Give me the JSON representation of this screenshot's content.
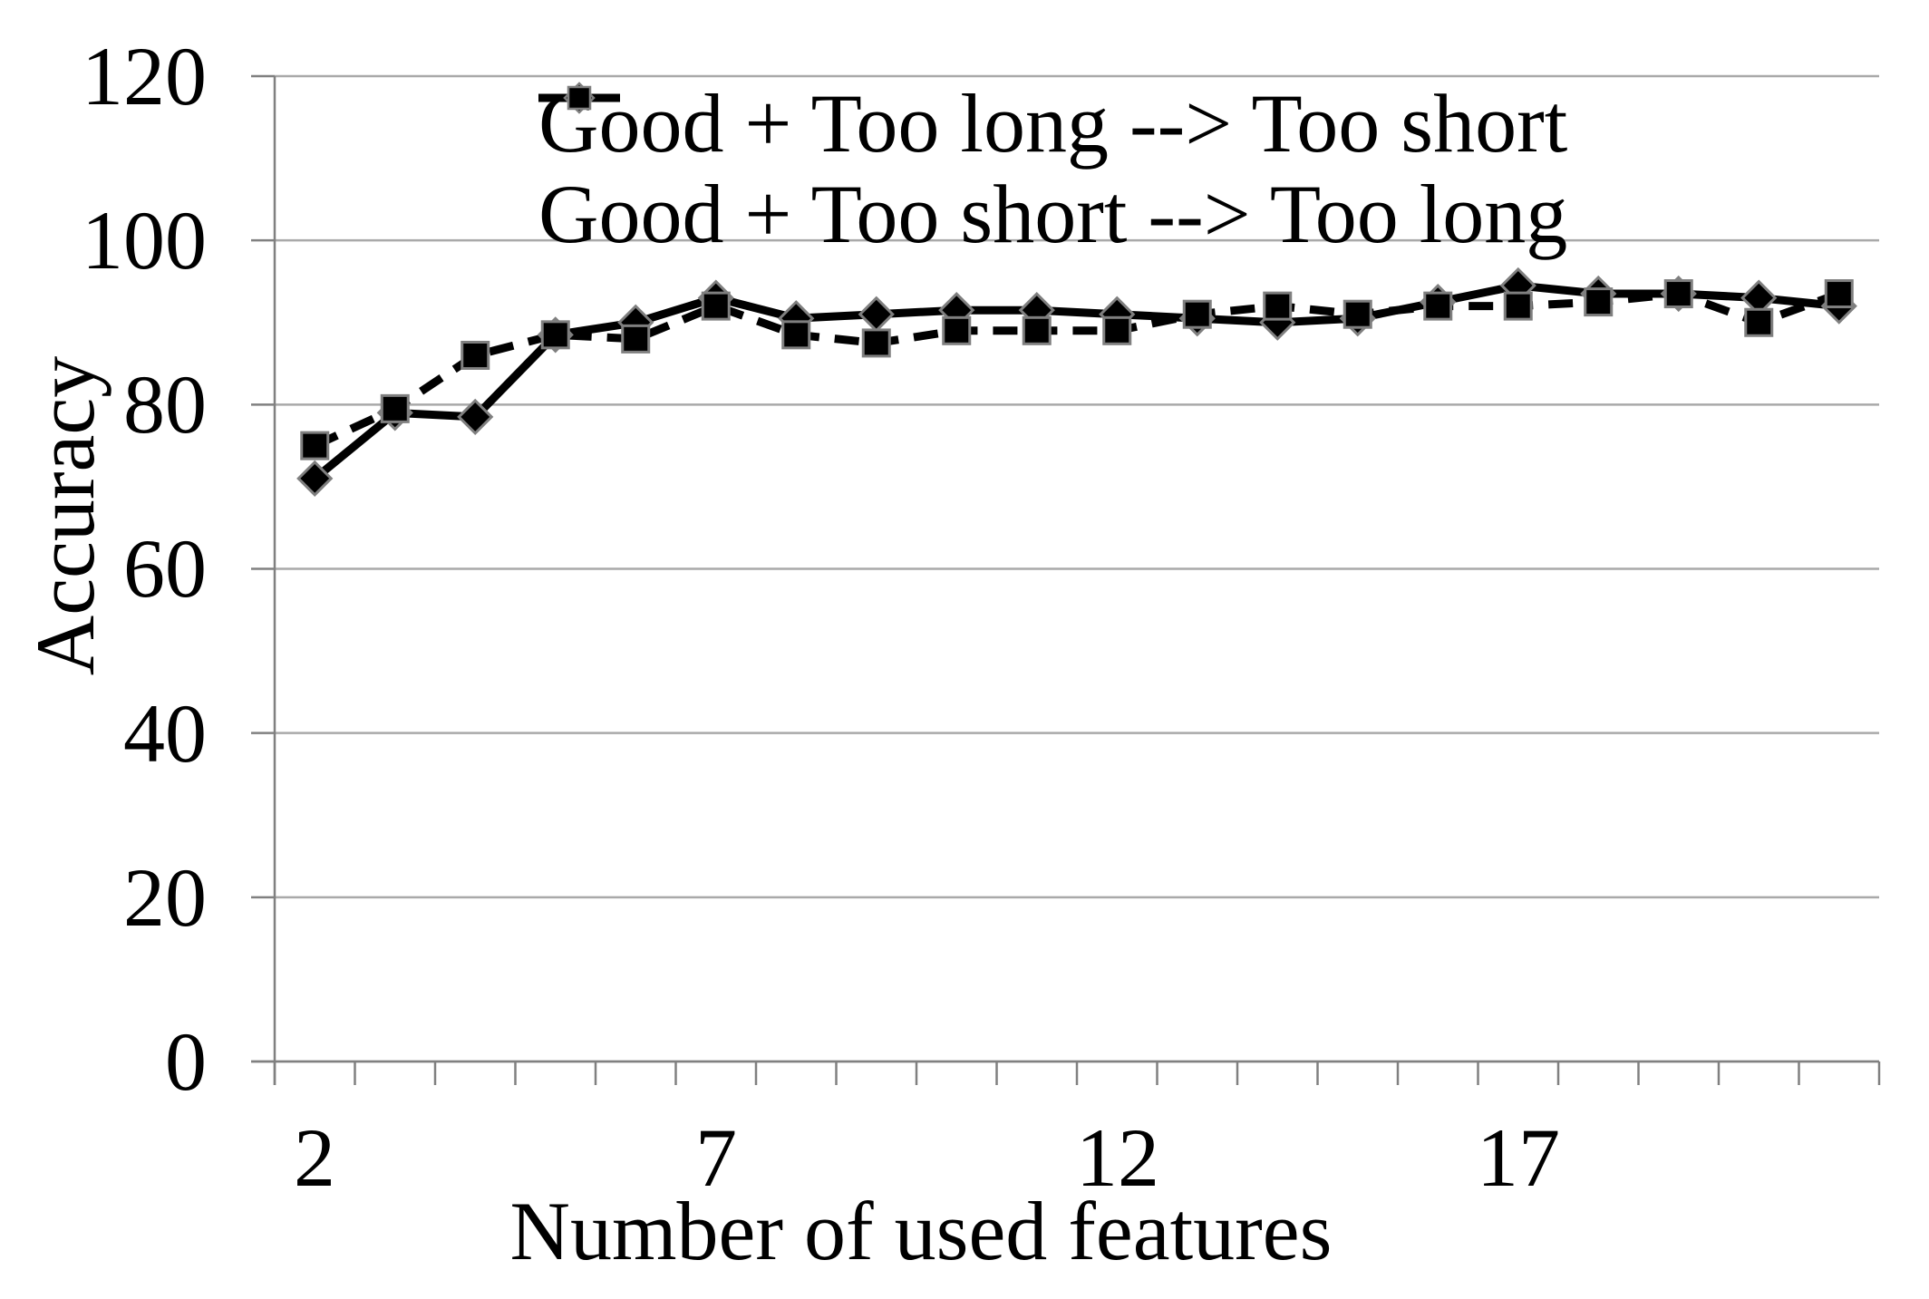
{
  "chart_data": {
    "type": "line",
    "title": "",
    "xlabel": "Number of used features",
    "ylabel": "Accuracy",
    "x_values": [
      2,
      3,
      4,
      5,
      6,
      7,
      8,
      9,
      10,
      11,
      12,
      13,
      14,
      15,
      16,
      17,
      18,
      19,
      20,
      21
    ],
    "x_tick_labels": [
      "2",
      "7",
      "12",
      "17"
    ],
    "x_tick_values": [
      2,
      7,
      12,
      17
    ],
    "y_ticks": [
      0,
      20,
      40,
      60,
      80,
      100,
      120
    ],
    "y_tick_labels": [
      "120",
      "100",
      "80",
      "60",
      "40",
      "20",
      "0"
    ],
    "ylim": [
      0,
      120
    ],
    "grid": "horizontal",
    "legend_position": "top-center-inside",
    "series": [
      {
        "name": "Good + Too long --> Too short",
        "marker": "diamond",
        "line": "solid",
        "values": [
          71,
          79,
          78.5,
          88.5,
          90,
          93,
          90.5,
          91,
          91.5,
          91.5,
          91,
          90.5,
          90,
          90.5,
          92.5,
          94.5,
          93.5,
          93.5,
          93,
          92
        ]
      },
      {
        "name": "Good + Too short --> Too long",
        "marker": "square",
        "line": "dashed",
        "values": [
          75,
          79.5,
          86,
          88.5,
          88,
          92,
          88.5,
          87.5,
          89,
          89,
          89,
          91,
          92,
          91,
          92,
          92,
          92.5,
          93.5,
          90,
          93.5
        ]
      }
    ]
  },
  "colors": {
    "series": "#000000",
    "grid": "#a9a9a9",
    "axis": "#808080",
    "marker_outline": "#7f7f7f",
    "background": "#ffffff"
  }
}
